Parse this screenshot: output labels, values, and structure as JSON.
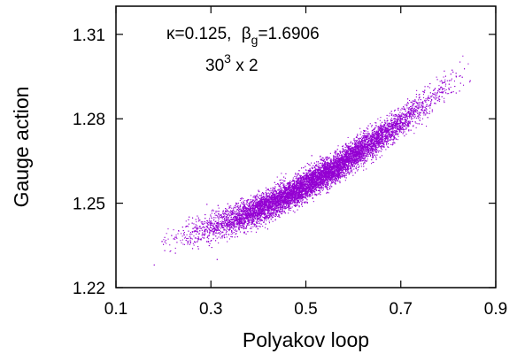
{
  "chart_data": {
    "type": "scatter",
    "xlabel": "Polyakov loop",
    "ylabel": "Gauge action",
    "xlim": [
      0.1,
      0.9
    ],
    "ylim": [
      1.22,
      1.32
    ],
    "x_ticks": [
      "0.1",
      "0.3",
      "0.5",
      "0.7",
      "0.9"
    ],
    "y_ticks": [
      "1.22",
      "1.25",
      "1.28",
      "1.31"
    ],
    "grid": false,
    "annotations": {
      "kappa": "κ=0.125,",
      "beta_symbol": "β",
      "beta_subscript": "g",
      "beta_value": "=1.6906",
      "lattice_base": "30",
      "lattice_exponent": "3",
      "lattice_rest": " x 2"
    },
    "series": [
      {
        "color": "#9400d3",
        "point_count": 12000,
        "trend": [
          [
            0.17,
            1.2334
          ],
          [
            0.2,
            1.2357
          ],
          [
            0.25,
            1.2385
          ],
          [
            0.3,
            1.2414
          ],
          [
            0.35,
            1.2445
          ],
          [
            0.4,
            1.248
          ],
          [
            0.45,
            1.252
          ],
          [
            0.5,
            1.2565
          ],
          [
            0.55,
            1.2615
          ],
          [
            0.6,
            1.267
          ],
          [
            0.65,
            1.273
          ],
          [
            0.7,
            1.279
          ],
          [
            0.75,
            1.2855
          ],
          [
            0.8,
            1.292
          ],
          [
            0.85,
            1.2995
          ],
          [
            0.87,
            1.3025
          ]
        ],
        "spread": 0.0025
      }
    ]
  }
}
